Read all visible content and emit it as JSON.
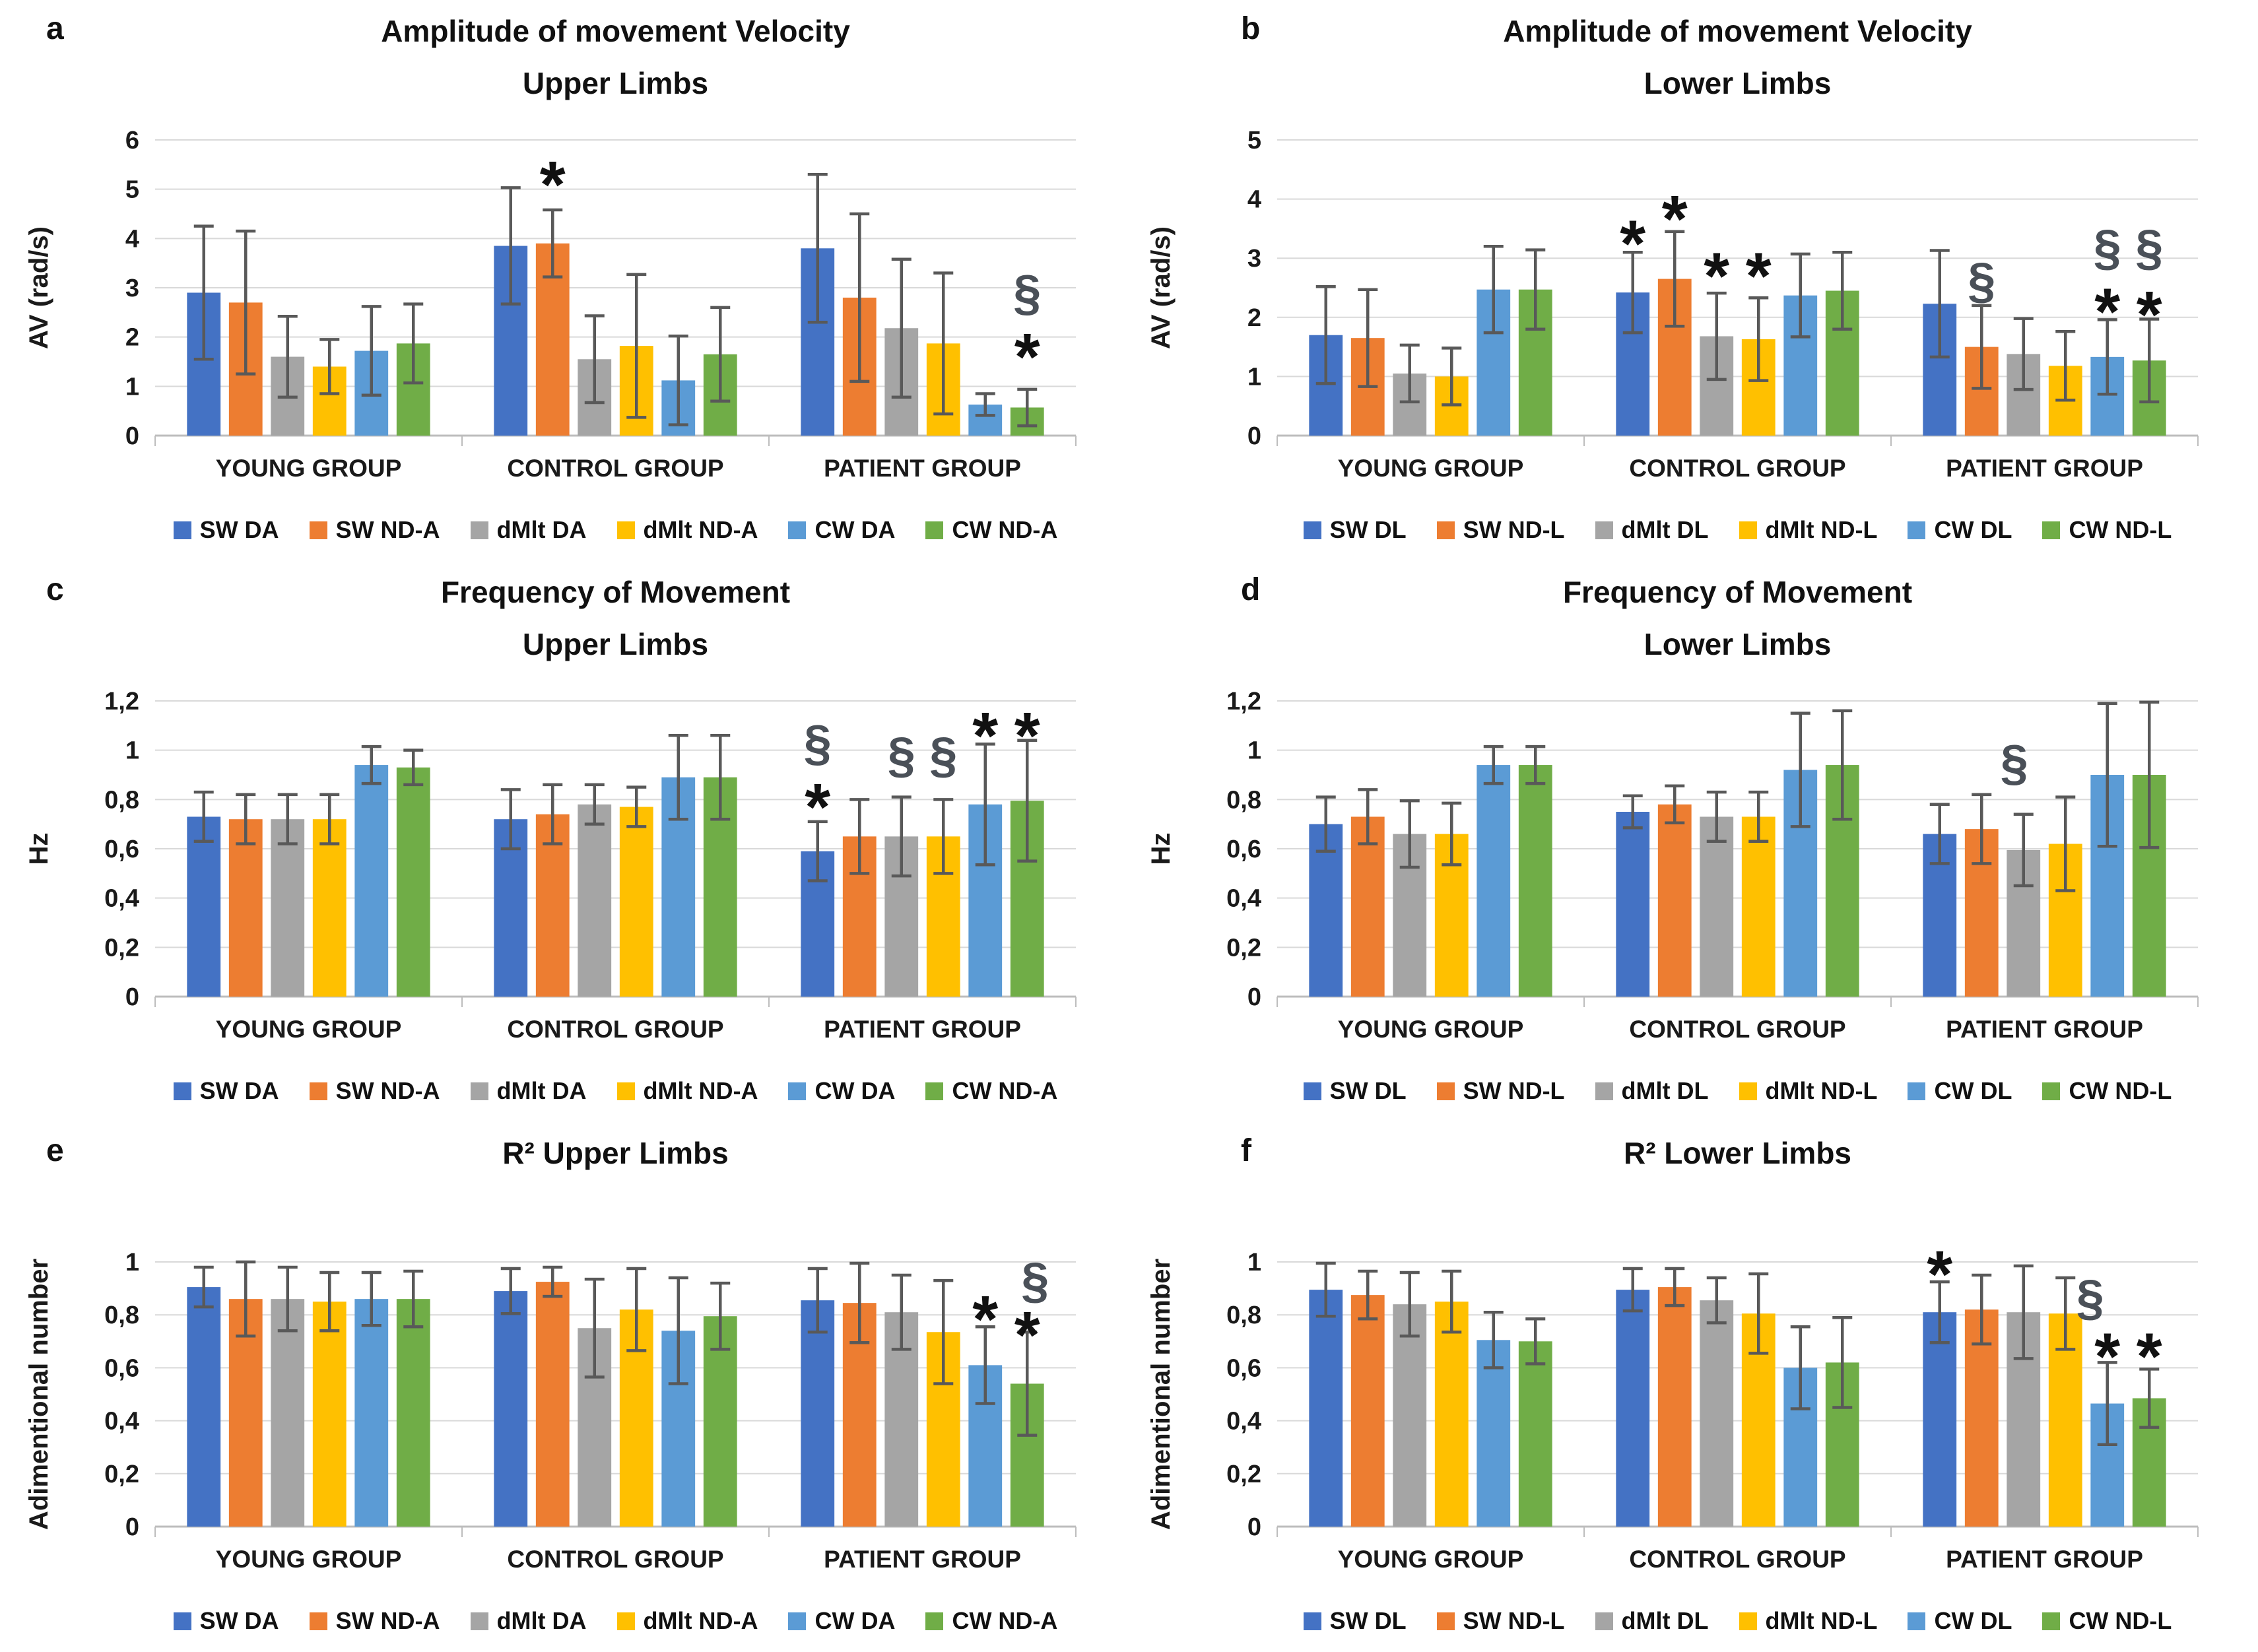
{
  "palette": {
    "series_colors": [
      "#4472C4",
      "#ED7D31",
      "#A5A5A5",
      "#FFC000",
      "#5B9BD5",
      "#70AD47"
    ],
    "error_bar_color": "#595959",
    "gridline_color": "#D9D9D9",
    "axis_line_color": "#BDBDBD",
    "section_symbol_color": "#4a5058",
    "asterisk_symbol_color": "#111111",
    "text_color": "#1a1a1a",
    "background": "#ffffff"
  },
  "chart_data": [
    {
      "id": "a",
      "letter": "a",
      "type": "bar",
      "title_lines": [
        "Amplitude of movement Velocity",
        "Upper Limbs"
      ],
      "ylabel": "AV (rad/s)",
      "ylim": [
        0,
        6
      ],
      "grid": true,
      "yticks": [
        {
          "v": 0,
          "label": "0"
        },
        {
          "v": 1,
          "label": "1"
        },
        {
          "v": 2,
          "label": "2"
        },
        {
          "v": 3,
          "label": "3"
        },
        {
          "v": 4,
          "label": "4"
        },
        {
          "v": 5,
          "label": "5"
        },
        {
          "v": 6,
          "label": "6"
        }
      ],
      "categories": [
        "YOUNG GROUP",
        "CONTROL GROUP",
        "PATIENT GROUP"
      ],
      "series": [
        {
          "name": "SW DA",
          "values": [
            2.9,
            3.85,
            3.8
          ],
          "errors": [
            1.35,
            1.18,
            1.5
          ]
        },
        {
          "name": "SW ND-A",
          "values": [
            2.7,
            3.9,
            2.8
          ],
          "errors": [
            1.45,
            0.68,
            1.7
          ]
        },
        {
          "name": "dMlt DA",
          "values": [
            1.6,
            1.55,
            2.18
          ],
          "errors": [
            0.82,
            0.88,
            1.4
          ]
        },
        {
          "name": "dMlt ND-A",
          "values": [
            1.4,
            1.82,
            1.87
          ],
          "errors": [
            0.55,
            1.45,
            1.43
          ]
        },
        {
          "name": "CW DA",
          "values": [
            1.72,
            1.12,
            0.63
          ],
          "errors": [
            0.9,
            0.9,
            0.22
          ]
        },
        {
          "name": "CW ND-A",
          "values": [
            1.87,
            1.65,
            0.57
          ],
          "errors": [
            0.8,
            0.95,
            0.37
          ]
        }
      ],
      "annotations": [
        {
          "group": 1,
          "series": 1,
          "symbol": "*",
          "y": 5.4
        },
        {
          "group": 2,
          "series": 5,
          "symbol": "§",
          "y": 2.9
        },
        {
          "group": 2,
          "series": 5,
          "symbol": "*",
          "y": 1.9
        }
      ]
    },
    {
      "id": "b",
      "letter": "b",
      "type": "bar",
      "title_lines": [
        "Amplitude of movement Velocity",
        "Lower Limbs"
      ],
      "ylabel": "AV (rad/s)",
      "ylim": [
        0,
        5
      ],
      "grid": true,
      "yticks": [
        {
          "v": 0,
          "label": "0"
        },
        {
          "v": 1,
          "label": "1"
        },
        {
          "v": 2,
          "label": "2"
        },
        {
          "v": 3,
          "label": "3"
        },
        {
          "v": 4,
          "label": "4"
        },
        {
          "v": 5,
          "label": "5"
        }
      ],
      "categories": [
        "YOUNG GROUP",
        "CONTROL GROUP",
        "PATIENT GROUP"
      ],
      "series": [
        {
          "name": "SW DL",
          "values": [
            1.7,
            2.42,
            2.23
          ],
          "errors": [
            0.82,
            0.68,
            0.9
          ]
        },
        {
          "name": "SW ND-L",
          "values": [
            1.65,
            2.65,
            1.5
          ],
          "errors": [
            0.82,
            0.8,
            0.7
          ]
        },
        {
          "name": "dMlt DL",
          "values": [
            1.05,
            1.68,
            1.38
          ],
          "errors": [
            0.48,
            0.73,
            0.6
          ]
        },
        {
          "name": "dMlt ND-L",
          "values": [
            1.0,
            1.63,
            1.18
          ],
          "errors": [
            0.48,
            0.7,
            0.58
          ]
        },
        {
          "name": "CW DL",
          "values": [
            2.47,
            2.37,
            1.33
          ],
          "errors": [
            0.73,
            0.7,
            0.63
          ]
        },
        {
          "name": "CW ND-L",
          "values": [
            2.47,
            2.45,
            1.27
          ],
          "errors": [
            0.67,
            0.65,
            0.7
          ]
        }
      ],
      "annotations": [
        {
          "group": 1,
          "series": 0,
          "symbol": "*",
          "y": 3.5
        },
        {
          "group": 1,
          "series": 1,
          "symbol": "*",
          "y": 3.92
        },
        {
          "group": 1,
          "series": 2,
          "symbol": "*",
          "y": 2.95
        },
        {
          "group": 1,
          "series": 3,
          "symbol": "*",
          "y": 2.95
        },
        {
          "group": 2,
          "series": 1,
          "symbol": "§",
          "y": 2.62
        },
        {
          "group": 2,
          "series": 4,
          "symbol": "§",
          "y": 3.18
        },
        {
          "group": 2,
          "series": 5,
          "symbol": "§",
          "y": 3.18
        },
        {
          "group": 2,
          "series": 4,
          "symbol": "*",
          "y": 2.35
        },
        {
          "group": 2,
          "series": 5,
          "symbol": "*",
          "y": 2.3
        }
      ]
    },
    {
      "id": "c",
      "letter": "c",
      "type": "bar",
      "title_lines": [
        "Frequency of Movement",
        "Upper Limbs"
      ],
      "ylabel": "Hz",
      "ylim": [
        0,
        1.2
      ],
      "grid": true,
      "yticks": [
        {
          "v": 0,
          "label": "0"
        },
        {
          "v": 0.2,
          "label": "0,2"
        },
        {
          "v": 0.4,
          "label": "0,4"
        },
        {
          "v": 0.6,
          "label": "0,6"
        },
        {
          "v": 0.8,
          "label": "0,8"
        },
        {
          "v": 1,
          "label": "1"
        },
        {
          "v": 1.2,
          "label": "1,2"
        }
      ],
      "categories": [
        "YOUNG GROUP",
        "CONTROL GROUP",
        "PATIENT GROUP"
      ],
      "series": [
        {
          "name": "SW DA",
          "values": [
            0.73,
            0.72,
            0.59
          ],
          "errors": [
            0.1,
            0.12,
            0.12
          ]
        },
        {
          "name": "SW ND-A",
          "values": [
            0.72,
            0.74,
            0.65
          ],
          "errors": [
            0.1,
            0.12,
            0.15
          ]
        },
        {
          "name": "dMlt DA",
          "values": [
            0.72,
            0.78,
            0.65
          ],
          "errors": [
            0.1,
            0.08,
            0.16
          ]
        },
        {
          "name": "dMlt ND-A",
          "values": [
            0.72,
            0.77,
            0.65
          ],
          "errors": [
            0.1,
            0.08,
            0.15
          ]
        },
        {
          "name": "CW DA",
          "values": [
            0.94,
            0.89,
            0.78
          ],
          "errors": [
            0.075,
            0.17,
            0.245
          ]
        },
        {
          "name": "CW ND-A",
          "values": [
            0.93,
            0.89,
            0.795
          ],
          "errors": [
            0.07,
            0.17,
            0.245
          ]
        }
      ],
      "annotations": [
        {
          "group": 2,
          "series": 0,
          "symbol": "§",
          "y": 1.03
        },
        {
          "group": 2,
          "series": 0,
          "symbol": "*",
          "y": 0.83
        },
        {
          "group": 2,
          "series": 2,
          "symbol": "§",
          "y": 0.98
        },
        {
          "group": 2,
          "series": 3,
          "symbol": "§",
          "y": 0.98
        },
        {
          "group": 2,
          "series": 4,
          "symbol": "*",
          "y": 1.12
        },
        {
          "group": 2,
          "series": 5,
          "symbol": "*",
          "y": 1.12
        }
      ]
    },
    {
      "id": "d",
      "letter": "d",
      "type": "bar",
      "title_lines": [
        "Frequency of Movement",
        "Lower Limbs"
      ],
      "ylabel": "Hz",
      "ylim": [
        0,
        1.2
      ],
      "grid": true,
      "yticks": [
        {
          "v": 0,
          "label": "0"
        },
        {
          "v": 0.2,
          "label": "0,2"
        },
        {
          "v": 0.4,
          "label": "0,4"
        },
        {
          "v": 0.6,
          "label": "0,6"
        },
        {
          "v": 0.8,
          "label": "0,8"
        },
        {
          "v": 1,
          "label": "1"
        },
        {
          "v": 1.2,
          "label": "1,2"
        }
      ],
      "categories": [
        "YOUNG GROUP",
        "CONTROL GROUP",
        "PATIENT GROUP"
      ],
      "series": [
        {
          "name": "SW DL",
          "values": [
            0.7,
            0.75,
            0.66
          ],
          "errors": [
            0.11,
            0.065,
            0.12
          ]
        },
        {
          "name": "SW ND-L",
          "values": [
            0.73,
            0.78,
            0.68
          ],
          "errors": [
            0.11,
            0.075,
            0.14
          ]
        },
        {
          "name": "dMlt DL",
          "values": [
            0.66,
            0.73,
            0.595
          ],
          "errors": [
            0.135,
            0.1,
            0.145
          ]
        },
        {
          "name": "dMlt ND-L",
          "values": [
            0.66,
            0.73,
            0.62
          ],
          "errors": [
            0.125,
            0.1,
            0.19
          ]
        },
        {
          "name": "CW DL",
          "values": [
            0.94,
            0.92,
            0.9
          ],
          "errors": [
            0.075,
            0.23,
            0.29
          ]
        },
        {
          "name": "CW ND-L",
          "values": [
            0.94,
            0.94,
            0.9
          ],
          "errors": [
            0.075,
            0.22,
            0.295
          ]
        }
      ],
      "annotations": [
        {
          "group": 2,
          "series": 2,
          "symbol": "§",
          "y": 0.95,
          "dx": -14
        }
      ]
    },
    {
      "id": "e",
      "letter": "e",
      "type": "bar",
      "title_lines": [
        "R² Upper Limbs"
      ],
      "ylabel": "Adimentional number",
      "ylim": [
        0,
        1
      ],
      "grid": true,
      "yticks": [
        {
          "v": 0,
          "label": "0"
        },
        {
          "v": 0.2,
          "label": "0,2"
        },
        {
          "v": 0.4,
          "label": "0,4"
        },
        {
          "v": 0.6,
          "label": "0,6"
        },
        {
          "v": 0.8,
          "label": "0,8"
        },
        {
          "v": 1,
          "label": "1"
        }
      ],
      "categories": [
        "YOUNG GROUP",
        "CONTROL GROUP",
        "PATIENT GROUP"
      ],
      "series": [
        {
          "name": "SW DA",
          "values": [
            0.905,
            0.89,
            0.855
          ],
          "errors": [
            0.075,
            0.085,
            0.12
          ]
        },
        {
          "name": "SW ND-A",
          "values": [
            0.86,
            0.925,
            0.845
          ],
          "errors": [
            0.14,
            0.055,
            0.15
          ]
        },
        {
          "name": "dMlt DA",
          "values": [
            0.86,
            0.75,
            0.81
          ],
          "errors": [
            0.12,
            0.185,
            0.14
          ]
        },
        {
          "name": "dMlt ND-A",
          "values": [
            0.85,
            0.82,
            0.735
          ],
          "errors": [
            0.11,
            0.155,
            0.195
          ]
        },
        {
          "name": "CW DA",
          "values": [
            0.86,
            0.74,
            0.61
          ],
          "errors": [
            0.1,
            0.2,
            0.145
          ]
        },
        {
          "name": "CW ND-A",
          "values": [
            0.86,
            0.795,
            0.54
          ],
          "errors": [
            0.105,
            0.125,
            0.195
          ]
        }
      ],
      "annotations": [
        {
          "group": 2,
          "series": 4,
          "symbol": "*",
          "y": 0.84
        },
        {
          "group": 2,
          "series": 5,
          "symbol": "§",
          "y": 0.93,
          "dx": 12
        },
        {
          "group": 2,
          "series": 5,
          "symbol": "*",
          "y": 0.78
        }
      ]
    },
    {
      "id": "f",
      "letter": "f",
      "type": "bar",
      "title_lines": [
        "R² Lower Limbs"
      ],
      "ylabel": "Adimentional number",
      "ylim": [
        0,
        1
      ],
      "grid": true,
      "yticks": [
        {
          "v": 0,
          "label": "0"
        },
        {
          "v": 0.2,
          "label": "0,2"
        },
        {
          "v": 0.4,
          "label": "0,4"
        },
        {
          "v": 0.6,
          "label": "0,6"
        },
        {
          "v": 0.8,
          "label": "0,8"
        },
        {
          "v": 1,
          "label": "1"
        }
      ],
      "categories": [
        "YOUNG GROUP",
        "CONTROL GROUP",
        "PATIENT GROUP"
      ],
      "series": [
        {
          "name": "SW DL",
          "values": [
            0.895,
            0.895,
            0.81
          ],
          "errors": [
            0.1,
            0.08,
            0.115
          ]
        },
        {
          "name": "SW ND-L",
          "values": [
            0.875,
            0.905,
            0.82
          ],
          "errors": [
            0.09,
            0.07,
            0.13
          ]
        },
        {
          "name": "dMlt DL",
          "values": [
            0.84,
            0.855,
            0.81
          ],
          "errors": [
            0.12,
            0.085,
            0.175
          ]
        },
        {
          "name": "dMlt ND-L",
          "values": [
            0.85,
            0.805,
            0.805
          ],
          "errors": [
            0.115,
            0.15,
            0.135
          ]
        },
        {
          "name": "CW DL",
          "values": [
            0.705,
            0.6,
            0.465
          ],
          "errors": [
            0.105,
            0.155,
            0.155
          ]
        },
        {
          "name": "CW ND-L",
          "values": [
            0.7,
            0.62,
            0.485
          ],
          "errors": [
            0.085,
            0.17,
            0.11
          ]
        }
      ],
      "annotations": [
        {
          "group": 2,
          "series": 0,
          "symbol": "*",
          "y": 1.01
        },
        {
          "group": 2,
          "series": 4,
          "symbol": "§",
          "y": 0.865,
          "dx": -26
        },
        {
          "group": 2,
          "series": 4,
          "symbol": "*",
          "y": 0.7
        },
        {
          "group": 2,
          "series": 5,
          "symbol": "*",
          "y": 0.7
        }
      ]
    }
  ]
}
